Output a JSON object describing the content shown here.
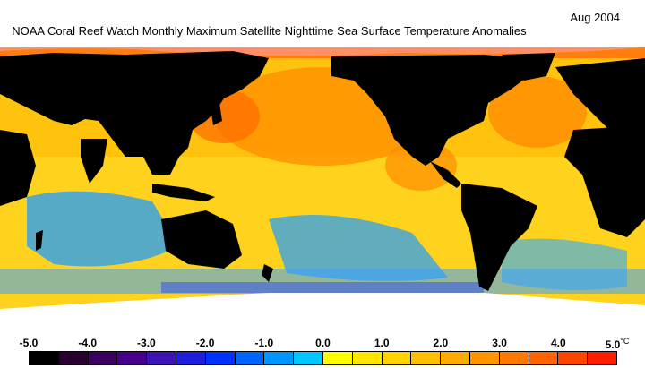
{
  "title": "NOAA Coral Reef Watch Monthly Maximum Satellite Nighttime Sea Surface Temperature Anomalies",
  "date": "Aug 2004",
  "legend": {
    "ticks": [
      "-5.0",
      "-4.0",
      "-3.0",
      "-2.0",
      "-1.0",
      "0.0",
      "1.0",
      "2.0",
      "3.0",
      "4.0",
      "5.0"
    ],
    "unit": "°C",
    "colors": [
      "#000000",
      "#2a0030",
      "#3c0060",
      "#46008c",
      "#3c14b4",
      "#1e1edc",
      "#0032ff",
      "#0064ff",
      "#0096ff",
      "#00c8ff",
      "#ffff00",
      "#ffe600",
      "#ffd200",
      "#ffbe00",
      "#ffaa00",
      "#ff9600",
      "#ff7800",
      "#ff6400",
      "#ff4600",
      "#ff1e00"
    ]
  },
  "map": {
    "land_color": "#000000",
    "ice_color": "#ffffff",
    "ocean_colors": {
      "cool": "#1ea0ff",
      "neutral": "#ffe600",
      "warm": "#ffaa00",
      "hot": "#ff5000"
    }
  }
}
